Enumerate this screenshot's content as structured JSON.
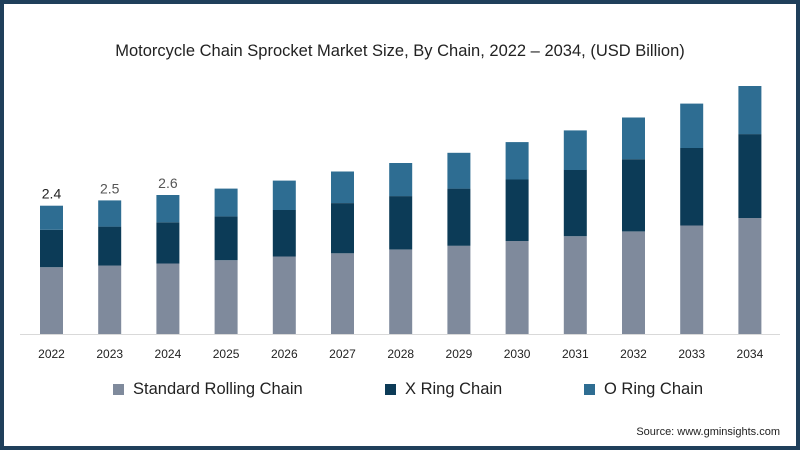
{
  "chart_data": {
    "type": "bar",
    "stacked": true,
    "title": "Motorcycle Chain Sprocket Market Size, By Chain, 2022 – 2034, (USD Billion)",
    "categories": [
      "2022",
      "2023",
      "2024",
      "2025",
      "2026",
      "2027",
      "2028",
      "2029",
      "2030",
      "2031",
      "2032",
      "2033",
      "2034"
    ],
    "series": [
      {
        "name": "Standard Rolling Chain",
        "color": "#7f8a9c",
        "values": [
          1.25,
          1.28,
          1.32,
          1.38,
          1.45,
          1.51,
          1.58,
          1.65,
          1.74,
          1.83,
          1.92,
          2.03,
          2.17
        ]
      },
      {
        "name": "X Ring Chain",
        "color": "#0c3b57",
        "values": [
          0.7,
          0.73,
          0.77,
          0.82,
          0.87,
          0.94,
          1.0,
          1.07,
          1.15,
          1.24,
          1.35,
          1.45,
          1.57
        ]
      },
      {
        "name": "O Ring Chain",
        "color": "#2e6d92",
        "values": [
          0.45,
          0.49,
          0.51,
          0.52,
          0.55,
          0.59,
          0.62,
          0.67,
          0.7,
          0.74,
          0.78,
          0.83,
          0.9
        ]
      }
    ],
    "data_labels": [
      "2.4",
      "2.5",
      "2.6"
    ],
    "xlabel": "",
    "ylabel": "",
    "ylim": [
      0,
      4.64
    ],
    "grid": false,
    "legend_position": "bottom"
  },
  "legend": {
    "items": [
      {
        "label": "Standard Rolling Chain",
        "color": "#7f8a9c"
      },
      {
        "label": "X Ring Chain",
        "color": "#0c3b57"
      },
      {
        "label": "O Ring Chain",
        "color": "#2e6d92"
      }
    ]
  },
  "source": "Source: www.gminsights.com"
}
